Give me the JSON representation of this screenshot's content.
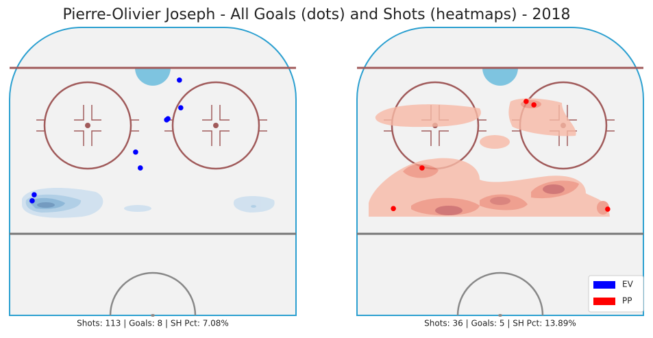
{
  "title": "Pierre-Olivier Joseph - All Goals (dots) and Shots (heatmaps) - 2018",
  "chart_data": [
    {
      "type": "scatter",
      "caption": "Shots: 113 | Goals: 8 | SH Pct: 7.08%",
      "color": "#0000ff",
      "x": [
        7.9,
        8.3,
        4.5,
        4.1,
        -5.1,
        -3.7,
        -35.2,
        -35.8
      ],
      "y": [
        81.7,
        72.1,
        68.3,
        67.9,
        56.7,
        51.2,
        41.9,
        39.8
      ],
      "xlim": [
        -42.5,
        42.5
      ],
      "ylim": [
        0,
        100
      ]
    },
    {
      "type": "scatter",
      "caption": "Shots: 36 | Goals: 5 | SH Pct: 13.89%",
      "color": "#ff0000",
      "x": [
        7.7,
        10.0,
        -23.2,
        -31.7,
        31.9
      ],
      "y": [
        74.3,
        73.1,
        51.2,
        37.1,
        36.9
      ],
      "xlim": [
        -42.5,
        42.5
      ],
      "ylim": [
        0,
        100
      ]
    }
  ],
  "legend": [
    {
      "name": "EV",
      "color": "#0000ff"
    },
    {
      "name": "PP",
      "color": "#ff0000"
    }
  ]
}
